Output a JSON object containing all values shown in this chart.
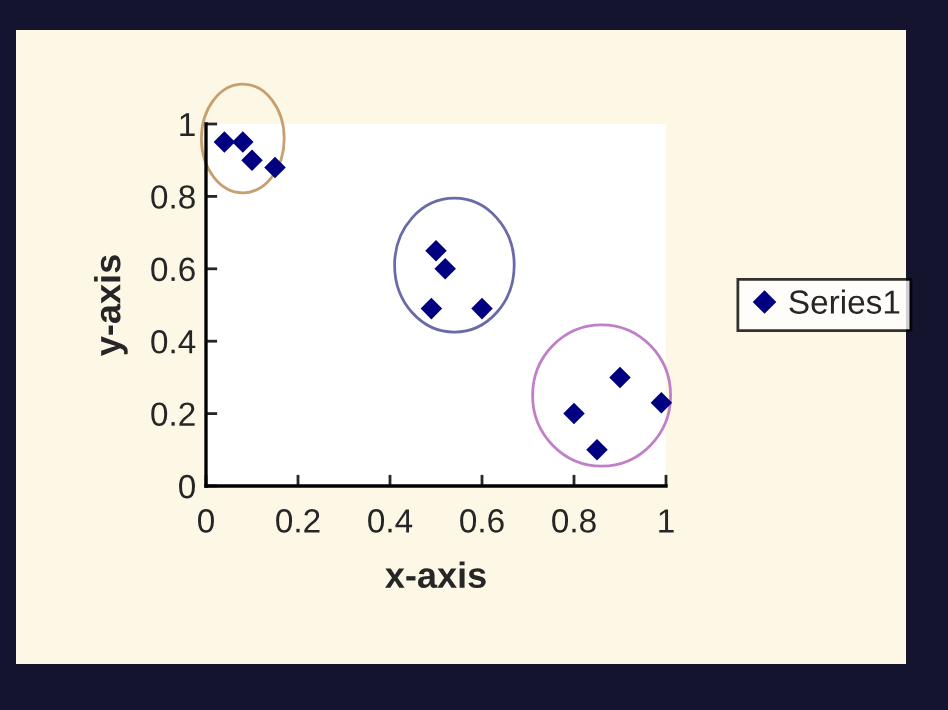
{
  "chart_data": {
    "type": "scatter",
    "xlabel": "x-axis",
    "ylabel": "y-axis",
    "xlim": [
      0,
      1
    ],
    "xticks": [
      0,
      0.2,
      0.4,
      0.6,
      0.8,
      1
    ],
    "ylim": [
      0,
      1
    ],
    "yticks": [
      0,
      0.2,
      0.4,
      0.6,
      0.8,
      1
    ],
    "grid": false,
    "legend": "right",
    "marker": "diamond",
    "series": [
      {
        "name": "Series1",
        "color": "#000080",
        "x": [
          0.04,
          0.08,
          0.1,
          0.15,
          0.5,
          0.52,
          0.49,
          0.6,
          0.8,
          0.85,
          0.9,
          0.99
        ],
        "values": [
          0.95,
          0.95,
          0.9,
          0.88,
          0.65,
          0.6,
          0.49,
          0.49,
          0.2,
          0.1,
          0.3,
          0.23
        ]
      }
    ]
  }
}
